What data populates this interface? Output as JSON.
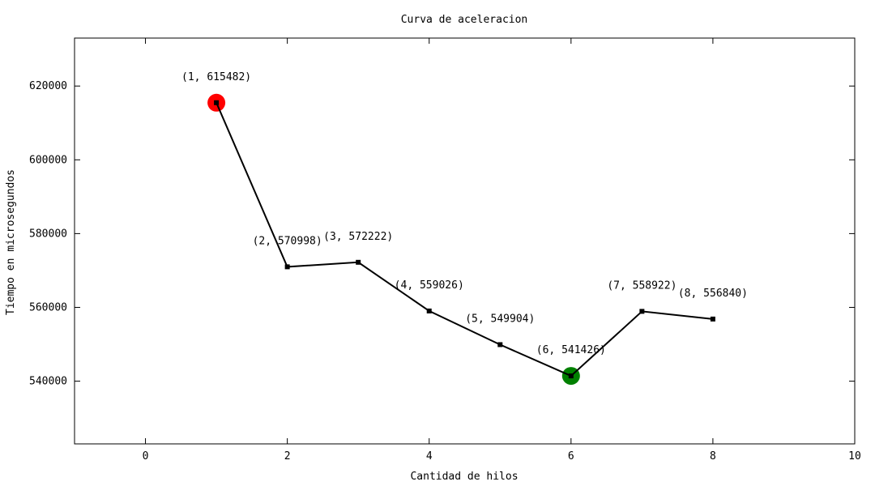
{
  "chart_data": {
    "type": "line",
    "title": "Curva de aceleracion",
    "xlabel": "Cantidad de hilos",
    "ylabel": "Tiempo en microsegundos",
    "xlim": [
      -1,
      10
    ],
    "ylim": [
      523000,
      633000
    ],
    "xticks": [
      0,
      2,
      4,
      6,
      8,
      10
    ],
    "xtick_labels": [
      "0",
      "2",
      "4",
      "6",
      "8",
      "10"
    ],
    "yticks": [
      540000,
      560000,
      580000,
      600000,
      620000
    ],
    "ytick_labels": [
      "540000",
      "560000",
      "580000",
      "600000",
      "620000"
    ],
    "grid": false,
    "legend": "none",
    "series": [
      {
        "x": [
          1,
          2,
          3,
          4,
          5,
          6,
          7,
          8
        ],
        "y": [
          615482,
          570998,
          572222,
          559026,
          549904,
          541426,
          558922,
          556840
        ],
        "color": "#000000"
      }
    ],
    "point_labels": [
      "(1, 615482)",
      "(2, 570998)",
      "(3, 572222)",
      "(4, 559026)",
      "(5, 549904)",
      "(6, 541426)",
      "(7, 558922)",
      "(8, 556840)"
    ],
    "highlights": [
      {
        "x": 1,
        "y": 615482,
        "color": "#ff0000"
      },
      {
        "x": 6,
        "y": 541426,
        "color": "#008000"
      }
    ]
  }
}
